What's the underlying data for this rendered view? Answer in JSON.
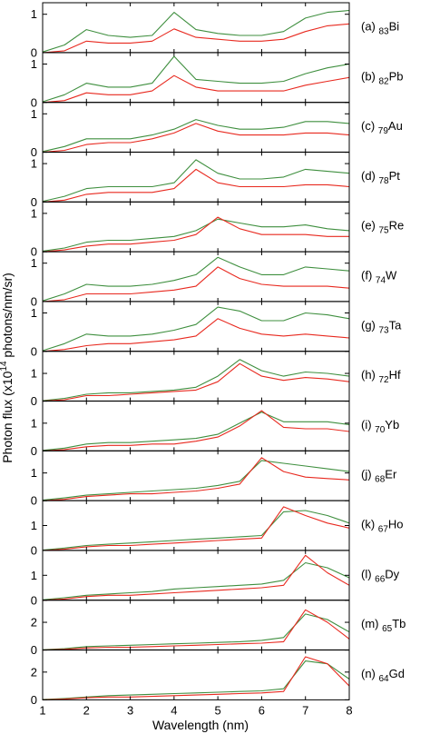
{
  "chart_data": {
    "type": "line",
    "xlabel": "Wavelength (nm)",
    "ylabel": "Photon flux (x10",
    "ylabel_sup": "14",
    "ylabel_rest": " photons/nm/sr)",
    "xlim": [
      1,
      8
    ],
    "x_ticks": [
      "1",
      "2",
      "3",
      "4",
      "5",
      "6",
      "7",
      "8"
    ],
    "grid": false,
    "colors": {
      "red": "#e8291f",
      "green": "#3f8f3f",
      "frame": "#000000"
    },
    "x": [
      1.0,
      1.5,
      2.0,
      2.5,
      3.0,
      3.5,
      4.0,
      4.5,
      5.0,
      5.5,
      6.0,
      6.5,
      7.0,
      7.5,
      8.0
    ],
    "panels": [
      {
        "label_pre": "(a) ",
        "label_sub": "83",
        "label_post": "Bi",
        "ylim": [
          0,
          1.3
        ],
        "yticks": [
          "0",
          "1"
        ],
        "ytick_vals": [
          0,
          1
        ],
        "series": [
          {
            "color": "red",
            "values": [
              0.0,
              0.05,
              0.3,
              0.25,
              0.25,
              0.3,
              0.62,
              0.4,
              0.35,
              0.3,
              0.3,
              0.35,
              0.55,
              0.7,
              0.75
            ]
          },
          {
            "color": "green",
            "values": [
              0.02,
              0.2,
              0.6,
              0.45,
              0.4,
              0.45,
              1.05,
              0.6,
              0.5,
              0.45,
              0.45,
              0.55,
              0.9,
              1.05,
              1.1
            ]
          }
        ]
      },
      {
        "label_pre": "(b) ",
        "label_sub": "82",
        "label_post": "Pb",
        "ylim": [
          0,
          1.3
        ],
        "yticks": [
          "0",
          "1"
        ],
        "ytick_vals": [
          0,
          1
        ],
        "series": [
          {
            "color": "red",
            "values": [
              0.0,
              0.05,
              0.25,
              0.2,
              0.2,
              0.3,
              0.7,
              0.4,
              0.3,
              0.3,
              0.3,
              0.3,
              0.45,
              0.55,
              0.65
            ]
          },
          {
            "color": "green",
            "values": [
              0.02,
              0.2,
              0.5,
              0.4,
              0.4,
              0.5,
              1.2,
              0.6,
              0.55,
              0.5,
              0.5,
              0.55,
              0.75,
              0.9,
              1.0
            ]
          }
        ]
      },
      {
        "label_pre": "(c) ",
        "label_sub": "79",
        "label_post": "Au",
        "ylim": [
          0,
          1.3
        ],
        "yticks": [
          "0",
          "1"
        ],
        "ytick_vals": [
          0,
          1
        ],
        "series": [
          {
            "color": "red",
            "values": [
              0.0,
              0.05,
              0.2,
              0.25,
              0.25,
              0.35,
              0.5,
              0.75,
              0.55,
              0.45,
              0.45,
              0.45,
              0.5,
              0.5,
              0.45
            ]
          },
          {
            "color": "green",
            "values": [
              0.02,
              0.15,
              0.35,
              0.35,
              0.35,
              0.45,
              0.6,
              0.85,
              0.7,
              0.6,
              0.6,
              0.65,
              0.8,
              0.8,
              0.75
            ]
          }
        ]
      },
      {
        "label_pre": "(d) ",
        "label_sub": "78",
        "label_post": "Pt",
        "ylim": [
          0,
          1.3
        ],
        "yticks": [
          "0",
          "1"
        ],
        "ytick_vals": [
          0,
          1
        ],
        "series": [
          {
            "color": "red",
            "values": [
              0.0,
              0.05,
              0.2,
              0.25,
              0.25,
              0.25,
              0.35,
              0.85,
              0.5,
              0.4,
              0.4,
              0.4,
              0.45,
              0.45,
              0.4
            ]
          },
          {
            "color": "green",
            "values": [
              0.02,
              0.15,
              0.35,
              0.4,
              0.4,
              0.4,
              0.5,
              1.1,
              0.75,
              0.6,
              0.6,
              0.65,
              0.85,
              0.8,
              0.75
            ]
          }
        ]
      },
      {
        "label_pre": "(e) ",
        "label_sub": "75",
        "label_post": "Re",
        "ylim": [
          0,
          1.3
        ],
        "yticks": [
          "0",
          "1"
        ],
        "ytick_vals": [
          0,
          1
        ],
        "series": [
          {
            "color": "red",
            "values": [
              0.0,
              0.05,
              0.15,
              0.2,
              0.2,
              0.25,
              0.3,
              0.45,
              0.9,
              0.6,
              0.45,
              0.45,
              0.45,
              0.4,
              0.4
            ]
          },
          {
            "color": "green",
            "values": [
              0.02,
              0.1,
              0.25,
              0.3,
              0.3,
              0.35,
              0.4,
              0.55,
              0.85,
              0.75,
              0.65,
              0.65,
              0.7,
              0.6,
              0.55
            ]
          }
        ]
      },
      {
        "label_pre": "(f) ",
        "label_sub": "74",
        "label_post": "W",
        "ylim": [
          0,
          1.3
        ],
        "yticks": [
          "0",
          "1"
        ],
        "ytick_vals": [
          0,
          1
        ],
        "series": [
          {
            "color": "red",
            "values": [
              0.0,
              0.05,
              0.2,
              0.2,
              0.2,
              0.25,
              0.3,
              0.4,
              0.9,
              0.6,
              0.45,
              0.4,
              0.4,
              0.4,
              0.35
            ]
          },
          {
            "color": "green",
            "values": [
              0.02,
              0.2,
              0.45,
              0.4,
              0.4,
              0.45,
              0.55,
              0.7,
              1.15,
              0.9,
              0.7,
              0.7,
              0.9,
              0.85,
              0.8
            ]
          }
        ]
      },
      {
        "label_pre": "(g) ",
        "label_sub": "73",
        "label_post": "Ta",
        "ylim": [
          0,
          1.3
        ],
        "yticks": [
          "0",
          "1"
        ],
        "ytick_vals": [
          0,
          1
        ],
        "series": [
          {
            "color": "red",
            "values": [
              0.0,
              0.05,
              0.15,
              0.2,
              0.2,
              0.25,
              0.3,
              0.4,
              0.85,
              0.6,
              0.45,
              0.4,
              0.45,
              0.4,
              0.35
            ]
          },
          {
            "color": "green",
            "values": [
              0.02,
              0.2,
              0.45,
              0.4,
              0.4,
              0.45,
              0.55,
              0.7,
              1.15,
              1.05,
              0.8,
              0.8,
              1.0,
              0.95,
              0.85
            ]
          }
        ]
      },
      {
        "label_pre": "(h) ",
        "label_sub": "72",
        "label_post": "Hf",
        "ylim": [
          0,
          1.8
        ],
        "yticks": [
          "0",
          "1"
        ],
        "ytick_vals": [
          0,
          1
        ],
        "series": [
          {
            "color": "red",
            "values": [
              0.0,
              0.05,
              0.2,
              0.2,
              0.25,
              0.3,
              0.35,
              0.4,
              0.7,
              1.35,
              0.9,
              0.75,
              0.85,
              0.8,
              0.7
            ]
          },
          {
            "color": "green",
            "values": [
              0.02,
              0.1,
              0.25,
              0.3,
              0.3,
              0.35,
              0.4,
              0.5,
              0.9,
              1.5,
              1.1,
              0.9,
              1.05,
              1.0,
              0.9
            ]
          }
        ]
      },
      {
        "label_pre": "(i) ",
        "label_sub": "70",
        "label_post": "Yb",
        "ylim": [
          0,
          1.8
        ],
        "yticks": [
          "0",
          "1"
        ],
        "ytick_vals": [
          0,
          1
        ],
        "series": [
          {
            "color": "red",
            "values": [
              0.0,
              0.05,
              0.15,
              0.2,
              0.2,
              0.25,
              0.25,
              0.35,
              0.5,
              0.9,
              1.45,
              0.85,
              0.8,
              0.8,
              0.7
            ]
          },
          {
            "color": "green",
            "values": [
              0.02,
              0.1,
              0.25,
              0.3,
              0.3,
              0.35,
              0.4,
              0.45,
              0.6,
              1.0,
              1.4,
              1.05,
              1.05,
              1.05,
              0.95
            ]
          }
        ]
      },
      {
        "label_pre": "(j) ",
        "label_sub": "68",
        "label_post": "Er",
        "ylim": [
          0,
          1.8
        ],
        "yticks": [
          "0",
          "1"
        ],
        "ytick_vals": [
          0,
          1
        ],
        "series": [
          {
            "color": "red",
            "values": [
              0.0,
              0.05,
              0.15,
              0.2,
              0.25,
              0.25,
              0.3,
              0.35,
              0.45,
              0.6,
              1.55,
              1.05,
              0.85,
              0.8,
              0.75
            ]
          },
          {
            "color": "green",
            "values": [
              0.02,
              0.1,
              0.2,
              0.25,
              0.3,
              0.35,
              0.4,
              0.45,
              0.55,
              0.7,
              1.45,
              1.35,
              1.25,
              1.15,
              1.05
            ]
          }
        ]
      },
      {
        "label_pre": "(k) ",
        "label_sub": "67",
        "label_post": "Ho",
        "ylim": [
          0,
          2.0
        ],
        "yticks": [
          "0",
          "1"
        ],
        "ytick_vals": [
          0,
          1
        ],
        "series": [
          {
            "color": "red",
            "values": [
              0.0,
              0.05,
              0.15,
              0.2,
              0.2,
              0.25,
              0.3,
              0.35,
              0.4,
              0.45,
              0.5,
              1.75,
              1.4,
              1.1,
              0.9
            ]
          },
          {
            "color": "green",
            "values": [
              0.02,
              0.1,
              0.2,
              0.25,
              0.3,
              0.35,
              0.4,
              0.45,
              0.5,
              0.55,
              0.6,
              1.55,
              1.6,
              1.4,
              1.1
            ]
          }
        ]
      },
      {
        "label_pre": "(l) ",
        "label_sub": "66",
        "label_post": "Dy",
        "ylim": [
          0,
          2.0
        ],
        "yticks": [
          "0",
          "1"
        ],
        "ytick_vals": [
          0,
          1
        ],
        "series": [
          {
            "color": "red",
            "values": [
              0.0,
              0.05,
              0.15,
              0.2,
              0.2,
              0.25,
              0.3,
              0.35,
              0.4,
              0.45,
              0.5,
              0.6,
              1.8,
              1.1,
              0.6
            ]
          },
          {
            "color": "green",
            "values": [
              0.02,
              0.1,
              0.2,
              0.25,
              0.3,
              0.35,
              0.45,
              0.5,
              0.55,
              0.6,
              0.65,
              0.8,
              1.5,
              1.3,
              0.9
            ]
          }
        ]
      },
      {
        "label_pre": "(m) ",
        "label_sub": "65",
        "label_post": "Tb",
        "ylim": [
          0,
          3.6
        ],
        "yticks": [
          "0",
          "2"
        ],
        "ytick_vals": [
          0,
          2
        ],
        "series": [
          {
            "color": "red",
            "values": [
              0.0,
              0.05,
              0.15,
              0.2,
              0.2,
              0.25,
              0.3,
              0.35,
              0.4,
              0.45,
              0.5,
              0.6,
              2.9,
              2.0,
              0.8
            ]
          },
          {
            "color": "green",
            "values": [
              0.02,
              0.1,
              0.25,
              0.3,
              0.35,
              0.4,
              0.45,
              0.5,
              0.55,
              0.6,
              0.7,
              0.9,
              2.6,
              2.2,
              1.3
            ]
          }
        ]
      },
      {
        "label_pre": "(n) ",
        "label_sub": "64",
        "label_post": "Gd",
        "ylim": [
          0,
          3.6
        ],
        "yticks": [
          "0",
          "2"
        ],
        "ytick_vals": [
          0,
          2
        ],
        "series": [
          {
            "color": "red",
            "values": [
              0.0,
              0.05,
              0.15,
              0.2,
              0.2,
              0.25,
              0.3,
              0.35,
              0.4,
              0.45,
              0.5,
              0.6,
              3.1,
              2.6,
              1.0
            ]
          },
          {
            "color": "green",
            "values": [
              0.02,
              0.1,
              0.2,
              0.3,
              0.35,
              0.4,
              0.45,
              0.5,
              0.55,
              0.6,
              0.65,
              0.8,
              2.8,
              2.6,
              1.5
            ]
          }
        ]
      }
    ]
  }
}
